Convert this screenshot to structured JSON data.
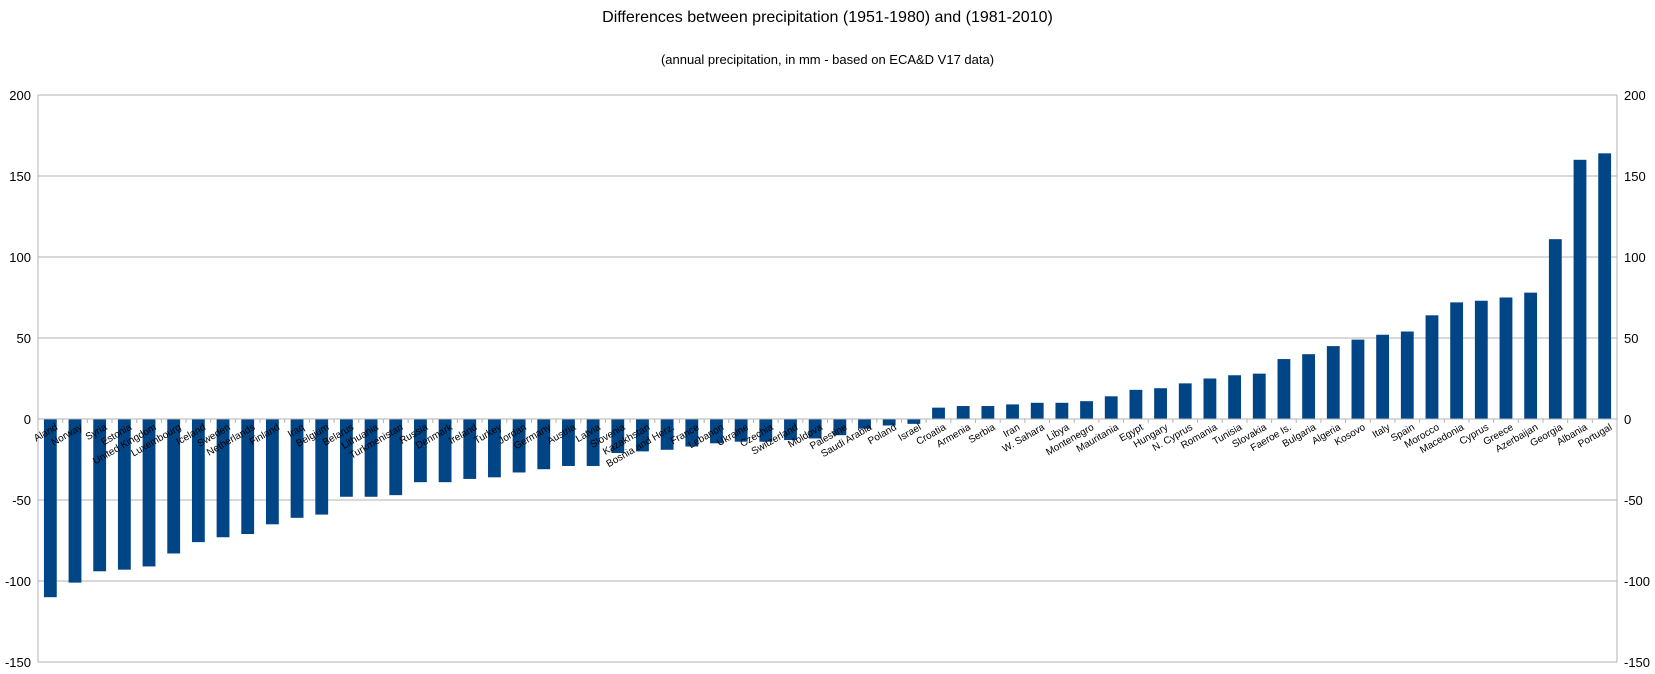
{
  "chart_data": {
    "type": "bar",
    "title": "Differences between precipitation (1951-1980) and (1981-2010)",
    "subtitle": "(annual precipitation, in mm - based on ECA&D V17 data)",
    "xlabel": "",
    "ylabel": "",
    "ylim": [
      -150,
      200
    ],
    "yticks": [
      -150,
      -100,
      -50,
      0,
      50,
      100,
      150,
      200
    ],
    "grid": true,
    "secondary_y_axis": true,
    "bar_color": "#004586",
    "categories": [
      "Aland",
      "Norway",
      "Syria",
      "Estonia",
      "United Kingdom",
      "Luxembourg",
      "Iceland",
      "Sweden",
      "Netherlands",
      "Finland",
      "Iraq",
      "Belgium",
      "Belarus",
      "Lithuania",
      "Turkmenistan",
      "Russia",
      "Denmark",
      "Ireland",
      "Turkey",
      "Jordan",
      "Germany",
      "Austria",
      "Latvia",
      "Slovenia",
      "Kazakhstan",
      "Bosnia and Herz.",
      "France",
      "Lebanon",
      "Ukraine",
      "Czechia",
      "Switzerland",
      "Moldova",
      "Palestine",
      "Saudi Arabia",
      "Poland",
      "Israel",
      "Croatia",
      "Armenia",
      "Serbia",
      "Iran",
      "W. Sahara",
      "Libya",
      "Montenegro",
      "Mauritania",
      "Egypt",
      "Hungary",
      "N. Cyprus",
      "Romania",
      "Tunisia",
      "Slovakia",
      "Faeroe Is.",
      "Bulgaria",
      "Algeria",
      "Kosovo",
      "Italy",
      "Spain",
      "Morocco",
      "Macedonia",
      "Cyprus",
      "Greece",
      "Azerbaijan",
      "Georgia",
      "Albania",
      "Portugal"
    ],
    "values": [
      -110,
      -101,
      -94,
      -93,
      -91,
      -83,
      -76,
      -73,
      -71,
      -65,
      -61,
      -59,
      -48,
      -48,
      -47,
      -39,
      -39,
      -37,
      -36,
      -33,
      -31,
      -29,
      -29,
      -21,
      -20,
      -19,
      -17,
      -15,
      -14,
      -14,
      -13,
      -12,
      -10,
      -6,
      -4,
      -3,
      7,
      8,
      8,
      9,
      10,
      10,
      11,
      14,
      18,
      19,
      22,
      25,
      27,
      28,
      37,
      40,
      45,
      49,
      52,
      54,
      64,
      72,
      73,
      75,
      78,
      111,
      160,
      164
    ]
  }
}
